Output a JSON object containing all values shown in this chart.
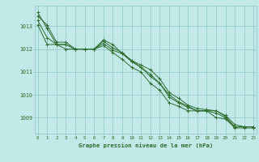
{
  "background_color": "#c2e8e8",
  "grid_color": "#88c8c8",
  "line_color": "#2d6e2d",
  "xlabel": "Graphe pression niveau de la mer (hPa)",
  "xlabel_color": "#2d6e2d",
  "tick_color": "#2d6e2d",
  "x_ticks": [
    0,
    1,
    2,
    3,
    4,
    5,
    6,
    7,
    8,
    9,
    10,
    11,
    12,
    13,
    14,
    15,
    16,
    17,
    18,
    19,
    20,
    21,
    22,
    23
  ],
  "ylim": [
    1008.3,
    1013.9
  ],
  "yticks": [
    1009,
    1010,
    1011,
    1012,
    1013
  ],
  "series": [
    [
      1013.6,
      1012.9,
      1012.2,
      1012.0,
      1012.0,
      1012.0,
      1012.0,
      1012.15,
      1011.85,
      1011.55,
      1011.2,
      1011.0,
      1010.5,
      1010.2,
      1009.65,
      1009.5,
      1009.3,
      1009.3,
      1009.3,
      1009.0,
      1008.95,
      1008.55,
      1008.55,
      1008.55
    ],
    [
      1013.05,
      1012.2,
      1012.2,
      1012.2,
      1012.0,
      1012.0,
      1012.0,
      1012.4,
      1012.2,
      1011.8,
      1011.5,
      1011.2,
      1010.8,
      1010.5,
      1010.0,
      1009.7,
      1009.5,
      1009.3,
      1009.3,
      1009.3,
      1009.05,
      1008.6,
      1008.6,
      1008.6
    ],
    [
      1013.25,
      1012.5,
      1012.2,
      1012.2,
      1012.0,
      1012.0,
      1012.0,
      1012.25,
      1011.95,
      1011.8,
      1011.45,
      1011.2,
      1010.9,
      1010.5,
      1009.9,
      1009.65,
      1009.45,
      1009.3,
      1009.3,
      1009.2,
      1009.0,
      1008.6,
      1008.6,
      1008.6
    ],
    [
      1013.45,
      1013.05,
      1012.3,
      1012.3,
      1012.0,
      1012.0,
      1012.0,
      1012.35,
      1012.05,
      1011.85,
      1011.5,
      1011.3,
      1011.1,
      1010.7,
      1010.1,
      1009.85,
      1009.55,
      1009.4,
      1009.35,
      1009.3,
      1009.1,
      1008.7,
      1008.6,
      1008.6
    ]
  ]
}
